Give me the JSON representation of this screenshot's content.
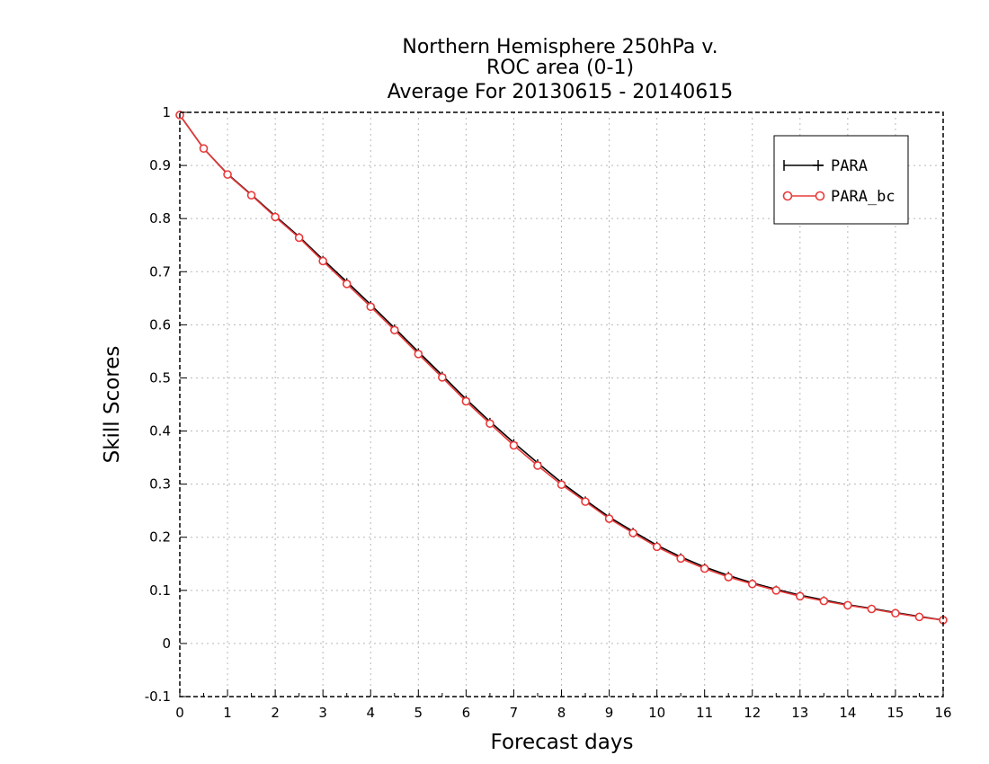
{
  "chart_data": {
    "type": "line",
    "title_lines": [
      "Northern Hemisphere 250hPa v.",
      "ROC area (0-1)",
      "Average For 20130615 - 20140615"
    ],
    "xlabel": "Forecast days",
    "ylabel": "Skill Scores",
    "xlim": [
      0,
      16
    ],
    "ylim": [
      -0.1,
      1
    ],
    "xticks": [
      0,
      1,
      2,
      3,
      4,
      5,
      6,
      7,
      8,
      9,
      10,
      11,
      12,
      13,
      14,
      15,
      16
    ],
    "xtick_labels": [
      "0",
      "1",
      "2",
      "3",
      "4",
      "5",
      "6",
      "7",
      "8",
      "9",
      "10",
      "11",
      "12",
      "13",
      "14",
      "15",
      "16"
    ],
    "yticks": [
      -0.1,
      0,
      0.1,
      0.2,
      0.3,
      0.4,
      0.5,
      0.6,
      0.7,
      0.8,
      0.9,
      1
    ],
    "ytick_labels": [
      "-0.1",
      "0",
      "0.1",
      "0.2",
      "0.3",
      "0.4",
      "0.5",
      "0.6",
      "0.7",
      "0.8",
      "0.9",
      "1"
    ],
    "grid": true,
    "legend_position": "top-right",
    "x": [
      0,
      0.5,
      1,
      1.5,
      2,
      2.5,
      3,
      3.5,
      4,
      4.5,
      5,
      5.5,
      6,
      6.5,
      7,
      7.5,
      8,
      8.5,
      9,
      9.5,
      10,
      10.5,
      11,
      11.5,
      12,
      12.5,
      13,
      13.5,
      14,
      14.5,
      15,
      15.5,
      16
    ],
    "series": [
      {
        "name": "PARA",
        "color": "#000000",
        "marker": "plus",
        "values": [
          0.995,
          0.932,
          0.884,
          0.845,
          0.805,
          0.766,
          0.723,
          0.681,
          0.638,
          0.594,
          0.549,
          0.505,
          0.46,
          0.418,
          0.378,
          0.34,
          0.303,
          0.27,
          0.238,
          0.211,
          0.185,
          0.163,
          0.144,
          0.128,
          0.114,
          0.102,
          0.091,
          0.082,
          0.073,
          0.066,
          0.058,
          0.051,
          0.044
        ]
      },
      {
        "name": "PARA_bc",
        "color": "#e83a3a",
        "marker": "circle",
        "values": [
          0.995,
          0.932,
          0.883,
          0.844,
          0.803,
          0.764,
          0.72,
          0.677,
          0.634,
          0.59,
          0.545,
          0.501,
          0.456,
          0.414,
          0.373,
          0.335,
          0.299,
          0.267,
          0.235,
          0.208,
          0.182,
          0.16,
          0.141,
          0.125,
          0.112,
          0.1,
          0.089,
          0.08,
          0.072,
          0.065,
          0.057,
          0.05,
          0.044
        ]
      }
    ]
  }
}
